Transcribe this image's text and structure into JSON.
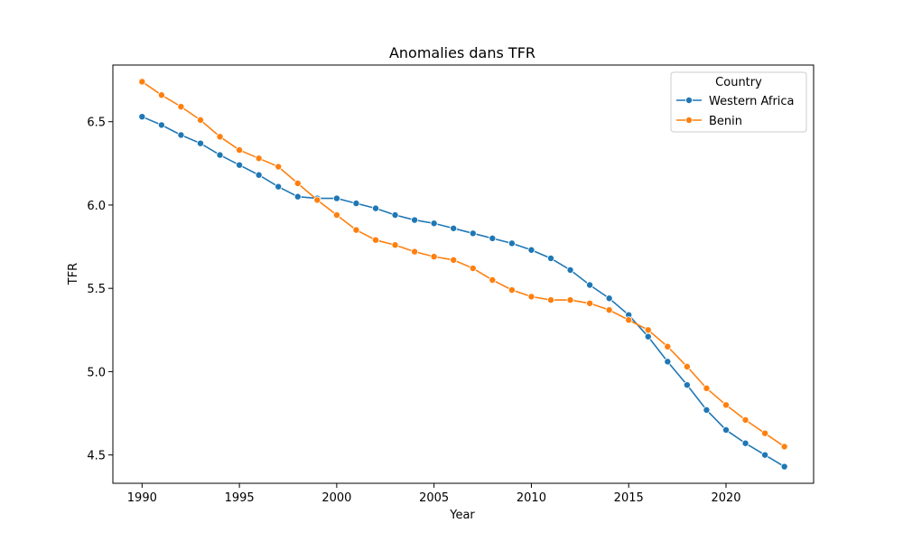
{
  "chart_data": {
    "type": "line",
    "title": "Anomalies dans TFR",
    "xlabel": "Year",
    "ylabel": "TFR",
    "xlim": [
      1988.5,
      2024.5
    ],
    "ylim": [
      4.33,
      6.84
    ],
    "xticks": [
      1990,
      1995,
      2000,
      2005,
      2010,
      2015,
      2020
    ],
    "yticks": [
      4.5,
      5.0,
      5.5,
      6.0,
      6.5
    ],
    "ytick_labels": [
      "4.5",
      "5.0",
      "5.5",
      "6.0",
      "6.5"
    ],
    "grid": false,
    "legend": {
      "title": "Country",
      "placement": "top-right"
    },
    "x": [
      1990,
      1991,
      1992,
      1993,
      1994,
      1995,
      1996,
      1997,
      1998,
      1999,
      2000,
      2001,
      2002,
      2003,
      2004,
      2005,
      2006,
      2007,
      2008,
      2009,
      2010,
      2011,
      2012,
      2013,
      2014,
      2015,
      2016,
      2017,
      2018,
      2019,
      2020,
      2021,
      2022,
      2023
    ],
    "series": [
      {
        "name": "Western Africa",
        "color": "#1f77b4",
        "marker": "circle",
        "values": [
          6.53,
          6.48,
          6.42,
          6.37,
          6.3,
          6.24,
          6.18,
          6.11,
          6.05,
          6.04,
          6.04,
          6.01,
          5.98,
          5.94,
          5.91,
          5.89,
          5.86,
          5.83,
          5.8,
          5.77,
          5.73,
          5.68,
          5.61,
          5.52,
          5.44,
          5.34,
          5.21,
          5.06,
          4.92,
          4.77,
          4.65,
          4.57,
          4.5,
          4.43
        ]
      },
      {
        "name": "Benin",
        "color": "#ff7f0e",
        "marker": "circle",
        "values": [
          6.74,
          6.66,
          6.59,
          6.51,
          6.41,
          6.33,
          6.28,
          6.23,
          6.13,
          6.03,
          5.94,
          5.85,
          5.79,
          5.76,
          5.72,
          5.69,
          5.67,
          5.62,
          5.55,
          5.49,
          5.45,
          5.43,
          5.43,
          5.41,
          5.37,
          5.31,
          5.25,
          5.15,
          5.03,
          4.9,
          4.8,
          4.71,
          4.63,
          4.55
        ]
      }
    ]
  }
}
